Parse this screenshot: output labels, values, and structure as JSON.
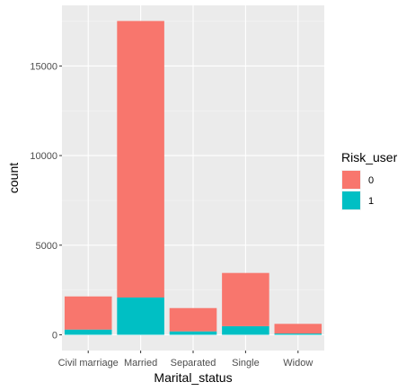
{
  "chart_data": {
    "type": "bar",
    "stacked": true,
    "xlabel": "Marital_status",
    "ylabel": "count",
    "categories": [
      "Civil marriage",
      "Married",
      "Separated",
      "Single",
      "Widow"
    ],
    "series": [
      {
        "name": "0",
        "color": "#F8766D",
        "values": [
          1850,
          15430,
          1300,
          2970,
          540
        ]
      },
      {
        "name": "1",
        "color": "#00BFC4",
        "values": [
          290,
          2080,
          190,
          480,
          70
        ]
      }
    ],
    "yticks": [
      0,
      5000,
      10000,
      15000
    ],
    "ylim": [
      -880,
      18380
    ],
    "legend": {
      "title": "Risk_user",
      "position": "right"
    },
    "grid": true,
    "panel_background": "#EBEBEB"
  }
}
